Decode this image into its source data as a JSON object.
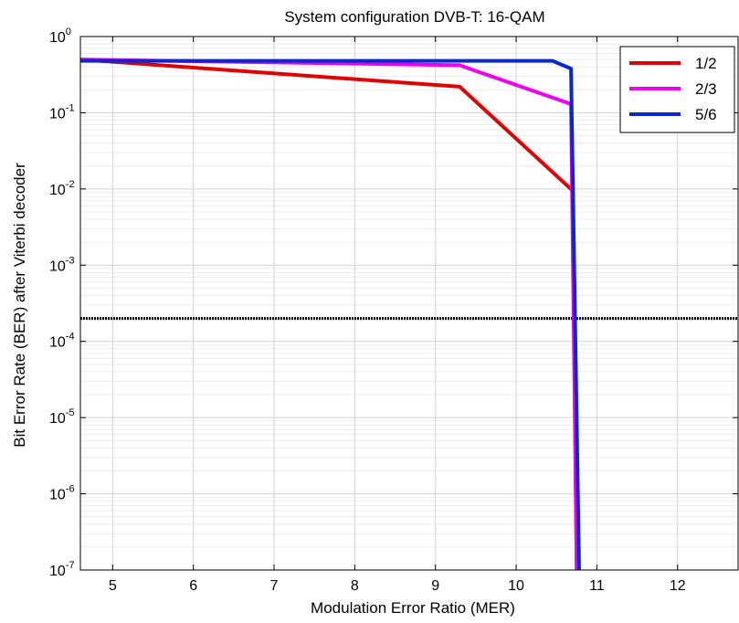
{
  "chart_data": {
    "type": "line",
    "title": "System configuration DVB-T: 16-QAM",
    "xlabel": "Modulation Error Ratio (MER)",
    "ylabel": "Bit Error Rate (BER) after Viterbi decoder",
    "xlim": [
      4.6,
      12.75
    ],
    "ylim": [
      1e-07,
      1
    ],
    "yscale": "log",
    "grid": true,
    "legend_position": "top-right",
    "x_ticks": [
      5,
      6,
      7,
      8,
      9,
      10,
      11,
      12
    ],
    "x_tick_labels": [
      "5",
      "6",
      "7",
      "8",
      "9",
      "10",
      "11",
      "12"
    ],
    "y_ticks": [
      {
        "value": 1,
        "base": "10",
        "exp": "0"
      },
      {
        "value": 0.1,
        "base": "10",
        "exp": "-1"
      },
      {
        "value": 0.01,
        "base": "10",
        "exp": "-2"
      },
      {
        "value": 0.001,
        "base": "10",
        "exp": "-3"
      },
      {
        "value": 0.0001,
        "base": "10",
        "exp": "-4"
      },
      {
        "value": 1e-05,
        "base": "10",
        "exp": "-5"
      },
      {
        "value": 1e-06,
        "base": "10",
        "exp": "-6"
      },
      {
        "value": 1e-07,
        "base": "10",
        "exp": "-7"
      }
    ],
    "reference_line": {
      "y": 0.0002,
      "color": "#000000",
      "style": "dotted"
    },
    "series": [
      {
        "name": "1/2",
        "color": "#e00000",
        "points": [
          [
            4.6,
            0.5
          ],
          [
            9.3,
            0.22
          ],
          [
            10.7,
            0.0095
          ],
          [
            10.75,
            1e-07
          ]
        ]
      },
      {
        "name": "2/3",
        "color": "#ee00ee",
        "points": [
          [
            4.6,
            0.5
          ],
          [
            9.3,
            0.42
          ],
          [
            10.68,
            0.13
          ],
          [
            10.75,
            1e-07
          ]
        ]
      },
      {
        "name": "5/6",
        "color": "#0a28d2",
        "points": [
          [
            4.6,
            0.48
          ],
          [
            10.45,
            0.48
          ],
          [
            10.68,
            0.38
          ],
          [
            10.78,
            1e-07
          ]
        ]
      }
    ]
  }
}
